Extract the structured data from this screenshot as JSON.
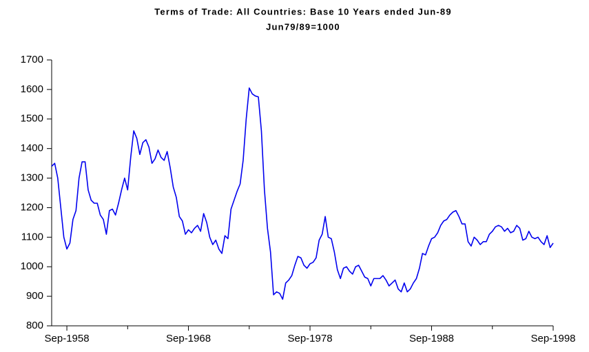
{
  "chart_data": {
    "type": "line",
    "title": "Terms of Trade: All Countries: Base 10 Years ended Jun-89",
    "subtitle": "Jun79/89=1000",
    "x": [
      "Jun-1957",
      "Sep-1957",
      "Dec-1957",
      "Mar-1958",
      "Jun-1958",
      "Sep-1958",
      "Dec-1958",
      "Mar-1959",
      "Jun-1959",
      "Sep-1959",
      "Dec-1959",
      "Mar-1960",
      "Jun-1960",
      "Sep-1960",
      "Dec-1960",
      "Mar-1961",
      "Jun-1961",
      "Sep-1961",
      "Dec-1961",
      "Mar-1962",
      "Jun-1962",
      "Sep-1962",
      "Dec-1962",
      "Mar-1963",
      "Jun-1963",
      "Sep-1963",
      "Dec-1963",
      "Mar-1964",
      "Jun-1964",
      "Sep-1964",
      "Dec-1964",
      "Mar-1965",
      "Jun-1965",
      "Sep-1965",
      "Dec-1965",
      "Mar-1966",
      "Jun-1966",
      "Sep-1966",
      "Dec-1966",
      "Mar-1967",
      "Jun-1967",
      "Sep-1967",
      "Dec-1967",
      "Mar-1968",
      "Jun-1968",
      "Sep-1968",
      "Dec-1968",
      "Mar-1969",
      "Jun-1969",
      "Sep-1969",
      "Dec-1969",
      "Mar-1970",
      "Jun-1970",
      "Sep-1970",
      "Dec-1970",
      "Mar-1971",
      "Jun-1971",
      "Sep-1971",
      "Dec-1971",
      "Mar-1972",
      "Jun-1972",
      "Sep-1972",
      "Dec-1972",
      "Mar-1973",
      "Jun-1973",
      "Sep-1973",
      "Dec-1973",
      "Mar-1974",
      "Jun-1974",
      "Sep-1974",
      "Dec-1974",
      "Mar-1975",
      "Jun-1975",
      "Sep-1975",
      "Dec-1975",
      "Mar-1976",
      "Jun-1976",
      "Sep-1976",
      "Dec-1976",
      "Mar-1977",
      "Jun-1977",
      "Sep-1977",
      "Dec-1977",
      "Mar-1978",
      "Jun-1978",
      "Sep-1978",
      "Dec-1978",
      "Mar-1979",
      "Jun-1979",
      "Sep-1979",
      "Dec-1979",
      "Mar-1980",
      "Jun-1980",
      "Sep-1980",
      "Dec-1980",
      "Mar-1981",
      "Jun-1981",
      "Sep-1981",
      "Dec-1981",
      "Mar-1982",
      "Jun-1982",
      "Sep-1982",
      "Dec-1982",
      "Mar-1983",
      "Jun-1983",
      "Sep-1983",
      "Dec-1983",
      "Mar-1984",
      "Jun-1984",
      "Sep-1984",
      "Dec-1984",
      "Mar-1985",
      "Jun-1985",
      "Sep-1985",
      "Dec-1985",
      "Mar-1986",
      "Jun-1986",
      "Sep-1986",
      "Dec-1986",
      "Mar-1987",
      "Jun-1987",
      "Sep-1987",
      "Dec-1987",
      "Mar-1988",
      "Jun-1988",
      "Sep-1988",
      "Dec-1988",
      "Mar-1989",
      "Jun-1989",
      "Sep-1989",
      "Dec-1989",
      "Mar-1990",
      "Jun-1990",
      "Sep-1990",
      "Dec-1990",
      "Mar-1991",
      "Jun-1991",
      "Sep-1991",
      "Dec-1991",
      "Mar-1992",
      "Jun-1992",
      "Sep-1992",
      "Dec-1992",
      "Mar-1993",
      "Jun-1993",
      "Sep-1993",
      "Dec-1993",
      "Mar-1994",
      "Jun-1994",
      "Sep-1994",
      "Dec-1994",
      "Mar-1995",
      "Jun-1995",
      "Sep-1995",
      "Dec-1995",
      "Mar-1996",
      "Jun-1996",
      "Sep-1996",
      "Dec-1996",
      "Mar-1997",
      "Jun-1997",
      "Sep-1997",
      "Dec-1997",
      "Mar-1998",
      "Jun-1998",
      "Sep-1998"
    ],
    "series": [
      {
        "color": "#0000ee",
        "values": [
          1340,
          1350,
          1300,
          1200,
          1100,
          1060,
          1080,
          1160,
          1190,
          1300,
          1355,
          1355,
          1260,
          1225,
          1215,
          1215,
          1175,
          1160,
          1110,
          1190,
          1195,
          1175,
          1215,
          1260,
          1300,
          1260,
          1370,
          1460,
          1435,
          1380,
          1420,
          1430,
          1405,
          1350,
          1365,
          1395,
          1370,
          1360,
          1390,
          1335,
          1270,
          1235,
          1170,
          1155,
          1110,
          1125,
          1115,
          1130,
          1140,
          1120,
          1180,
          1150,
          1100,
          1075,
          1090,
          1060,
          1045,
          1105,
          1095,
          1195,
          1225,
          1255,
          1280,
          1360,
          1500,
          1605,
          1585,
          1578,
          1575,
          1460,
          1260,
          1130,
          1050,
          905,
          915,
          910,
          890,
          945,
          955,
          970,
          1005,
          1035,
          1030,
          1005,
          995,
          1010,
          1015,
          1030,
          1090,
          1110,
          1170,
          1100,
          1095,
          1050,
          990,
          960,
          995,
          1000,
          985,
          975,
          1000,
          1005,
          985,
          965,
          960,
          935,
          960,
          960,
          960,
          970,
          955,
          935,
          945,
          955,
          925,
          915,
          945,
          915,
          925,
          945,
          960,
          995,
          1045,
          1040,
          1070,
          1095,
          1100,
          1115,
          1140,
          1155,
          1160,
          1175,
          1185,
          1190,
          1170,
          1145,
          1145,
          1085,
          1070,
          1100,
          1090,
          1075,
          1085,
          1085,
          1110,
          1120,
          1135,
          1140,
          1135,
          1120,
          1130,
          1115,
          1120,
          1140,
          1130,
          1090,
          1095,
          1120,
          1100,
          1095,
          1100,
          1085,
          1075,
          1105,
          1065,
          1080
        ]
      }
    ],
    "xticks": [
      "Sep-1958",
      "Sep-1968",
      "Sep-1978",
      "Sep-1988",
      "Sep-1998"
    ],
    "ylim": [
      800,
      1700
    ],
    "yticks": [
      800,
      900,
      1000,
      1100,
      1200,
      1300,
      1400,
      1500,
      1600,
      1700
    ]
  }
}
